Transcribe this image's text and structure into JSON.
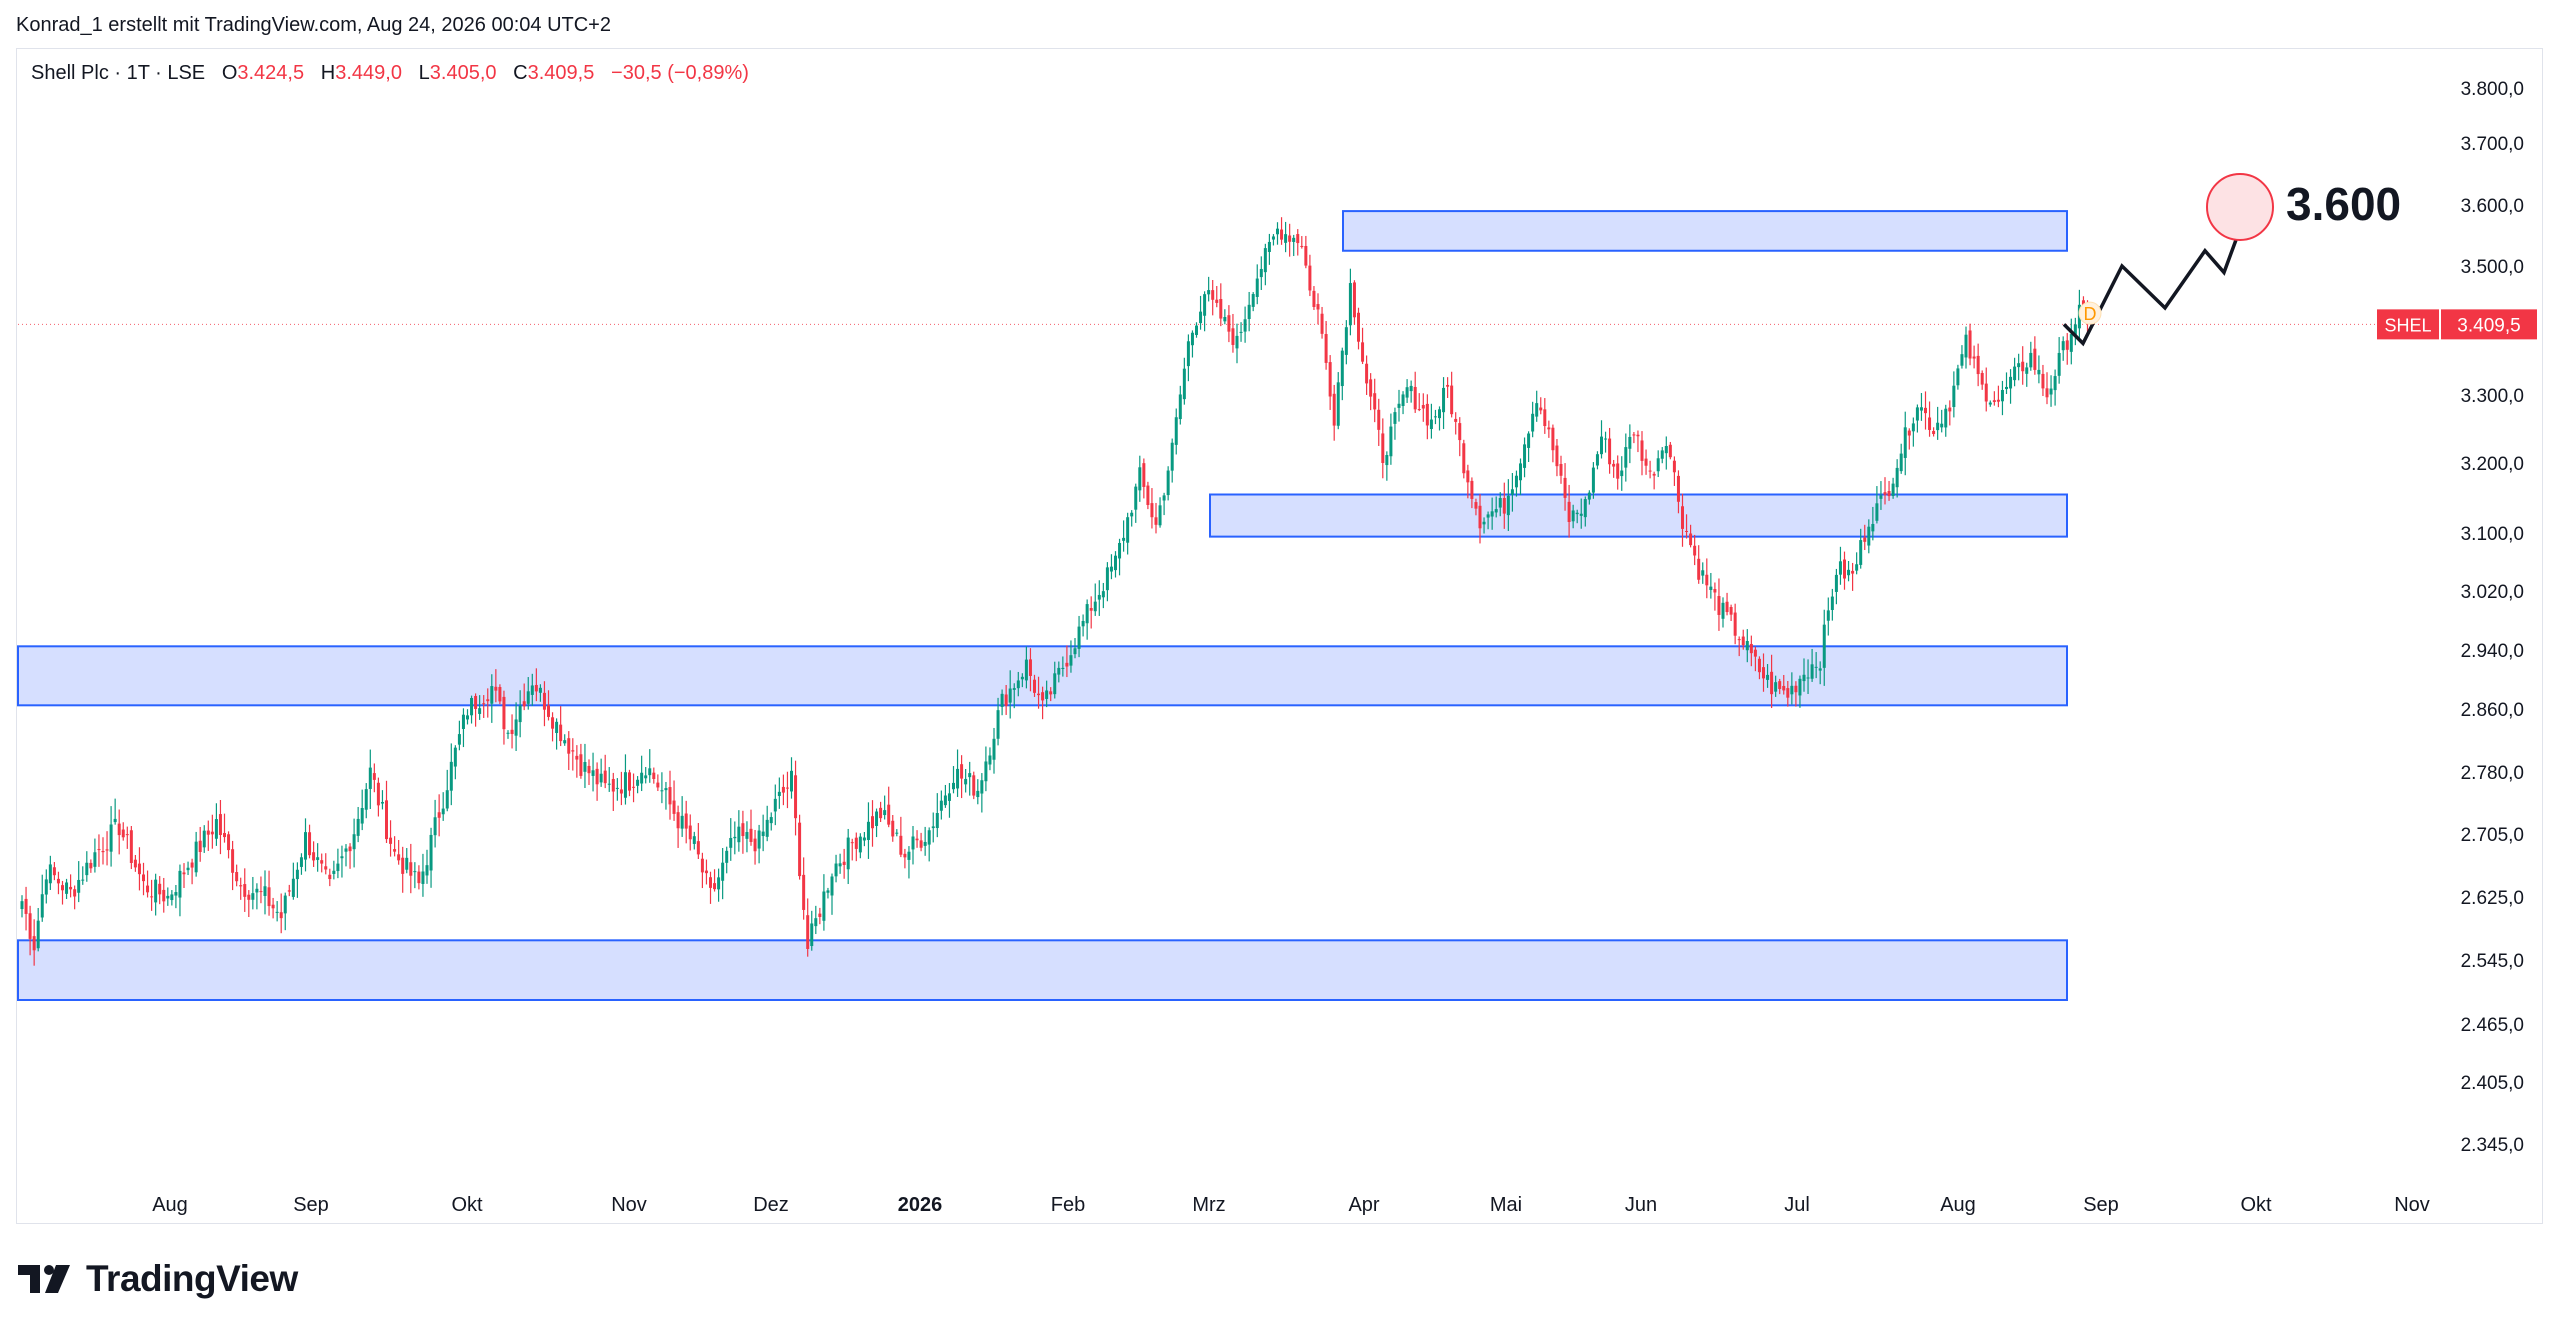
{
  "caption": "Konrad_1 erstellt mit TradingView.com, Aug 24, 2026 00:04 UTC+2",
  "legend": {
    "symbol": "Shell Plc · 1T · LSE",
    "o_label": "O",
    "o_value": "3.424,5",
    "h_label": "H",
    "h_value": "3.449,0",
    "l_label": "L",
    "l_value": "3.405,0",
    "c_label": "C",
    "c_value": "3.409,5",
    "change": "−30,5 (−0,89%)"
  },
  "brand": {
    "name": "TradingView",
    "icon": "tradingview-logo-icon"
  },
  "colors": {
    "up": "#089981",
    "down": "#f23645",
    "zone_fill": "#d1dcff",
    "zone_stroke": "#2962ff",
    "price_line": "#f23645",
    "projection": "#131722",
    "target_circle": "#f23645"
  },
  "chart_data": {
    "type": "candlestick",
    "symbol": "SHEL",
    "last_price": 3409.5,
    "last_price_label": "3.409,5",
    "y_axis": {
      "range": [
        2300,
        3850
      ],
      "ticks": [
        3800,
        3700,
        3600,
        3500,
        3300,
        3200,
        3100,
        3020,
        2940,
        2860,
        2780,
        2705,
        2625,
        2545,
        2465,
        2405,
        2345
      ],
      "tick_labels": [
        "3.800,0",
        "3.700,0",
        "3.600,0",
        "3.500,0",
        "3.300,0",
        "3.200,0",
        "3.100,0",
        "3.020,0",
        "2.940,0",
        "2.860,0",
        "2.780,0",
        "2.705,0",
        "2.625,0",
        "2.545,0",
        "2.465,0",
        "2.405,0",
        "2.345,0"
      ]
    },
    "x_axis": {
      "labels": [
        "Aug",
        "Sep",
        "Okt",
        "Nov",
        "Dez",
        "2026",
        "Feb",
        "Mrz",
        "Apr",
        "Mai",
        "Jun",
        "Jul",
        "Aug",
        "Sep",
        "Okt",
        "Nov"
      ],
      "bold": [
        "2026"
      ]
    },
    "anchors": [
      [
        0,
        2620
      ],
      [
        3,
        2565
      ],
      [
        6,
        2660
      ],
      [
        12,
        2630
      ],
      [
        18,
        2680
      ],
      [
        24,
        2715
      ],
      [
        30,
        2640
      ],
      [
        36,
        2625
      ],
      [
        42,
        2675
      ],
      [
        48,
        2720
      ],
      [
        54,
        2640
      ],
      [
        60,
        2625
      ],
      [
        64,
        2600
      ],
      [
        70,
        2700
      ],
      [
        76,
        2635
      ],
      [
        82,
        2710
      ],
      [
        86,
        2780
      ],
      [
        92,
        2680
      ],
      [
        98,
        2640
      ],
      [
        104,
        2750
      ],
      [
        110,
        2860
      ],
      [
        116,
        2890
      ],
      [
        120,
        2830
      ],
      [
        126,
        2900
      ],
      [
        132,
        2840
      ],
      [
        138,
        2790
      ],
      [
        144,
        2760
      ],
      [
        150,
        2770
      ],
      [
        154,
        2790
      ],
      [
        160,
        2740
      ],
      [
        166,
        2690
      ],
      [
        170,
        2625
      ],
      [
        176,
        2700
      ],
      [
        182,
        2695
      ],
      [
        186,
        2740
      ],
      [
        190,
        2770
      ],
      [
        194,
        2560
      ],
      [
        200,
        2660
      ],
      [
        206,
        2700
      ],
      [
        212,
        2730
      ],
      [
        218,
        2680
      ],
      [
        224,
        2710
      ],
      [
        230,
        2780
      ],
      [
        236,
        2760
      ],
      [
        242,
        2870
      ],
      [
        248,
        2920
      ],
      [
        252,
        2860
      ],
      [
        258,
        2930
      ],
      [
        264,
        3000
      ],
      [
        270,
        3060
      ],
      [
        276,
        3180
      ],
      [
        280,
        3110
      ],
      [
        284,
        3220
      ],
      [
        288,
        3380
      ],
      [
        292,
        3460
      ],
      [
        296,
        3420
      ],
      [
        300,
        3380
      ],
      [
        304,
        3470
      ],
      [
        310,
        3560
      ],
      [
        316,
        3540
      ],
      [
        318,
        3460
      ],
      [
        320,
        3430
      ],
      [
        324,
        3270
      ],
      [
        328,
        3470
      ],
      [
        332,
        3320
      ],
      [
        336,
        3210
      ],
      [
        342,
        3310
      ],
      [
        348,
        3260
      ],
      [
        352,
        3310
      ],
      [
        356,
        3200
      ],
      [
        360,
        3120
      ],
      [
        366,
        3140
      ],
      [
        370,
        3210
      ],
      [
        374,
        3300
      ],
      [
        378,
        3220
      ],
      [
        382,
        3120
      ],
      [
        386,
        3140
      ],
      [
        390,
        3240
      ],
      [
        394,
        3180
      ],
      [
        398,
        3250
      ],
      [
        402,
        3180
      ],
      [
        406,
        3240
      ],
      [
        410,
        3120
      ],
      [
        414,
        3050
      ],
      [
        420,
        2990
      ],
      [
        424,
        2960
      ],
      [
        428,
        2920
      ],
      [
        432,
        2890
      ],
      [
        436,
        2880
      ],
      [
        440,
        2910
      ],
      [
        444,
        2930
      ],
      [
        448,
        3050
      ],
      [
        452,
        3040
      ],
      [
        456,
        3120
      ],
      [
        460,
        3150
      ],
      [
        464,
        3220
      ],
      [
        468,
        3290
      ],
      [
        472,
        3250
      ],
      [
        476,
        3290
      ],
      [
        480,
        3380
      ],
      [
        484,
        3310
      ],
      [
        488,
        3290
      ],
      [
        492,
        3330
      ],
      [
        496,
        3360
      ],
      [
        500,
        3300
      ],
      [
        504,
        3370
      ],
      [
        508,
        3430
      ],
      [
        510,
        3409.5
      ]
    ],
    "zones": [
      {
        "from": 3525,
        "to": 3590
      },
      {
        "from": 3095,
        "to": 3155
      },
      {
        "from": 2865,
        "to": 2945
      },
      {
        "from": 2495,
        "to": 2570
      }
    ],
    "projection": {
      "path": [
        [
          3409.5
        ],
        [
          3380
        ],
        [
          3500
        ],
        [
          3435
        ],
        [
          3525
        ],
        [
          3490
        ],
        [
          3605
        ]
      ]
    },
    "target_label": "3.600",
    "event_marker": "D"
  }
}
